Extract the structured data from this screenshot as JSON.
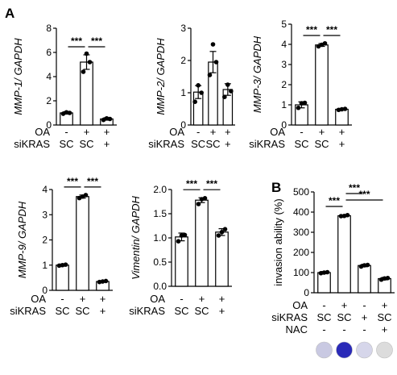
{
  "panel_labels": [
    "A",
    "B"
  ],
  "chart_data": [
    {
      "id": "mmp1",
      "type": "bar",
      "ylabel": "MMP-1/ GAPDH",
      "ylim": [
        0,
        8
      ],
      "yticks": [
        0,
        2,
        4,
        6,
        8
      ],
      "values": [
        1.0,
        5.2,
        0.5
      ],
      "errors": [
        0.1,
        0.6,
        0.1
      ],
      "points": [
        [
          0.93,
          1.0,
          1.05
        ],
        [
          4.4,
          5.2,
          5.9
        ],
        [
          0.42,
          0.5,
          0.55
        ]
      ],
      "annotations": [
        {
          "from": 0,
          "to": 1,
          "text": "***"
        },
        {
          "from": 1,
          "to": 2,
          "text": "***"
        }
      ],
      "conditions": [
        {
          "label": "OA",
          "values": [
            "-",
            "+",
            "+"
          ]
        },
        {
          "label": "siKRAS",
          "values": [
            "SC",
            "SC",
            "+"
          ]
        }
      ]
    },
    {
      "id": "mmp2",
      "type": "bar",
      "ylabel": "MMP-2/ GAPDH",
      "ylim": [
        0,
        3
      ],
      "yticks": [
        0,
        1,
        2,
        3
      ],
      "values": [
        1.02,
        1.95,
        1.1
      ],
      "errors": [
        0.2,
        0.33,
        0.18
      ],
      "points": [
        [
          0.72,
          1.0,
          1.23
        ],
        [
          1.55,
          1.95,
          2.5
        ],
        [
          0.87,
          1.05,
          1.25
        ]
      ],
      "annotations": [],
      "conditions": [
        {
          "label": "OA",
          "values": [
            "-",
            "+",
            "+"
          ]
        },
        {
          "label": "siKRAS",
          "values": [
            "SC",
            "SC",
            "+"
          ]
        }
      ]
    },
    {
      "id": "mmp3",
      "type": "bar",
      "ylabel": "MMP-3/ GAPDH",
      "ylim": [
        0,
        5
      ],
      "yticks": [
        0,
        1,
        2,
        3,
        4,
        5
      ],
      "values": [
        1.0,
        3.97,
        0.78
      ],
      "errors": [
        0.15,
        0.07,
        0.04
      ],
      "points": [
        [
          0.85,
          1.1,
          1.08
        ],
        [
          3.9,
          4.05,
          3.98
        ],
        [
          0.75,
          0.8,
          0.78
        ]
      ],
      "annotations": [
        {
          "from": 0,
          "to": 1,
          "text": "***"
        },
        {
          "from": 1,
          "to": 2,
          "text": "***"
        }
      ],
      "conditions": [
        {
          "label": "OA",
          "values": [
            "-",
            "+",
            "+"
          ]
        },
        {
          "label": "siKRAS",
          "values": [
            "SC",
            "SC",
            "+"
          ]
        }
      ]
    },
    {
      "id": "mmp9",
      "type": "bar",
      "ylabel": "MMP-9/ GAPDH",
      "ylim": [
        0,
        4
      ],
      "yticks": [
        0,
        1,
        2,
        3,
        4
      ],
      "values": [
        1.0,
        3.72,
        0.35
      ],
      "errors": [
        0.04,
        0.06,
        0.03
      ],
      "points": [
        [
          0.98,
          1.02,
          1.0
        ],
        [
          3.66,
          3.78,
          3.72
        ],
        [
          0.33,
          0.37,
          0.35
        ]
      ],
      "annotations": [
        {
          "from": 0,
          "to": 1,
          "text": "***"
        },
        {
          "from": 1,
          "to": 2,
          "text": "***"
        }
      ],
      "conditions": [
        {
          "label": "OA",
          "values": [
            "-",
            "+",
            "+"
          ]
        },
        {
          "label": "siKRAS",
          "values": [
            "SC",
            "SC",
            "+"
          ]
        }
      ]
    },
    {
      "id": "vimentin",
      "type": "bar",
      "ylabel": "Vimentin/ GAPDH",
      "ylim": [
        0,
        2.0
      ],
      "yticks": [
        0.0,
        0.5,
        1.0,
        1.5,
        2.0
      ],
      "tick_decimals": 1,
      "values": [
        1.02,
        1.78,
        1.12
      ],
      "errors": [
        0.08,
        0.05,
        0.07
      ],
      "points": [
        [
          0.93,
          1.06,
          1.05
        ],
        [
          1.7,
          1.82,
          1.8
        ],
        [
          1.05,
          1.18,
          1.12
        ]
      ],
      "annotations": [
        {
          "from": 0,
          "to": 1,
          "text": "***"
        },
        {
          "from": 1,
          "to": 2,
          "text": "***"
        }
      ],
      "conditions": [
        {
          "label": "OA",
          "values": [
            "-",
            "+",
            "+"
          ]
        },
        {
          "label": "siKRAS",
          "values": [
            "SC",
            "SC",
            "+"
          ]
        }
      ]
    },
    {
      "id": "invasion",
      "type": "bar",
      "ylabel": "invasion ability (%)",
      "ylim": [
        0,
        500
      ],
      "yticks": [
        0,
        100,
        200,
        300,
        400,
        500
      ],
      "values": [
        100,
        382,
        135,
        70
      ],
      "errors": [
        5,
        3,
        6,
        6
      ],
      "points": [
        [
          97,
          102,
          100
        ],
        [
          380,
          385,
          381
        ],
        [
          130,
          138,
          136
        ],
        [
          65,
          73,
          71
        ]
      ],
      "annotations": [
        {
          "from": 0,
          "to": 1,
          "text": "***"
        },
        {
          "from": 1,
          "to": 2,
          "text": "***"
        },
        {
          "from": 1,
          "to": 3,
          "text": "***"
        }
      ],
      "conditions": [
        {
          "label": "OA",
          "values": [
            "-",
            "+",
            "-",
            "+"
          ]
        },
        {
          "label": "siKRAS",
          "values": [
            "SC",
            "SC",
            "+",
            "SC"
          ]
        },
        {
          "label": "NAC",
          "values": [
            "-",
            "-",
            "-",
            "+"
          ]
        }
      ],
      "well_colors": [
        "#c9c9e2",
        "#2a2ab8",
        "#d6d6ea",
        "#dcdcdc"
      ]
    }
  ]
}
